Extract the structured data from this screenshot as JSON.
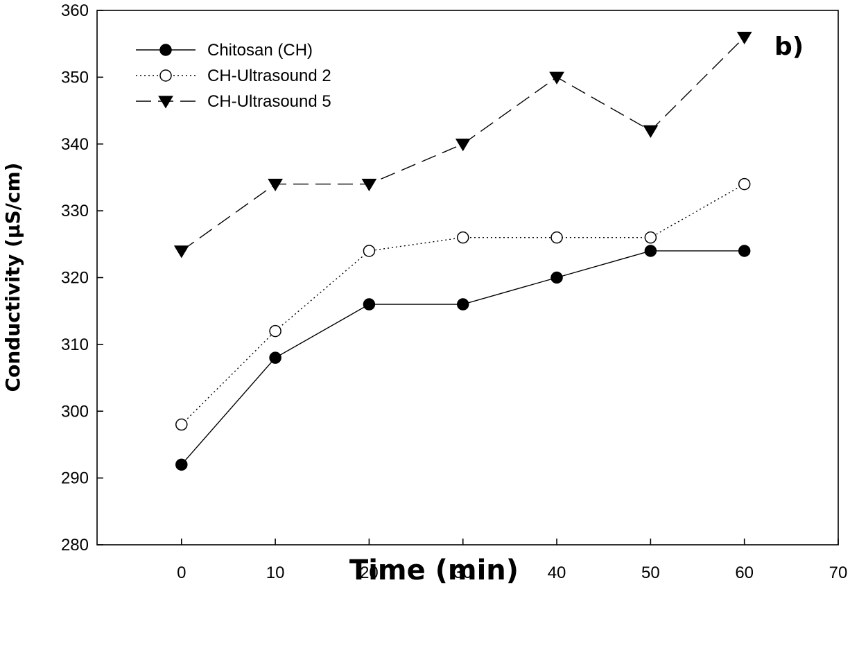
{
  "chart_data": {
    "type": "line",
    "title": "",
    "panel_label": "b)",
    "xlabel": "Time (min)",
    "ylabel": "Conductivity (µS/cm)",
    "xlim": [
      -9,
      70
    ],
    "ylim": [
      280,
      360
    ],
    "xticks": [
      0,
      10,
      20,
      30,
      40,
      50,
      60,
      70
    ],
    "yticks": [
      280,
      290,
      300,
      310,
      320,
      330,
      340,
      350,
      360
    ],
    "grid": false,
    "legend_position": "top-left",
    "x": [
      0,
      10,
      20,
      30,
      40,
      50,
      60
    ],
    "series": [
      {
        "name": "Chitosan (CH)",
        "values": [
          292,
          308,
          316,
          316,
          320,
          324,
          324
        ],
        "marker": "filled-circle",
        "line_style": "solid",
        "color": "#000000"
      },
      {
        "name": "CH-Ultrasound 2",
        "values": [
          298,
          312,
          324,
          326,
          326,
          326,
          334
        ],
        "marker": "open-circle",
        "line_style": "dotted",
        "color": "#000000"
      },
      {
        "name": "CH-Ultrasound 5",
        "values": [
          324,
          334,
          334,
          340,
          350,
          342,
          356
        ],
        "marker": "filled-triangle-down",
        "line_style": "dashed",
        "color": "#000000"
      }
    ]
  }
}
